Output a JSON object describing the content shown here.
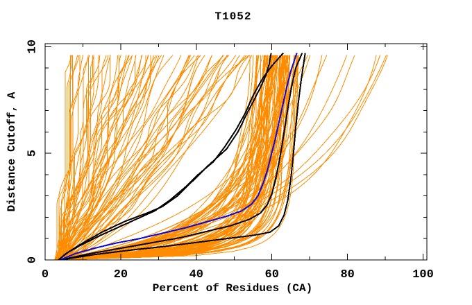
{
  "page": {
    "background": "#ffffff"
  },
  "chart_data": {
    "type": "line",
    "title": "T1052",
    "xlabel": "Percent of Residues (CA)",
    "ylabel": "Distance Cutoff, A",
    "xlim": [
      0,
      101
    ],
    "ylim": [
      0,
      10.14
    ],
    "grid": false,
    "legend": null,
    "x_axis": {
      "major": [
        {
          "v": 0,
          "label": "0"
        },
        {
          "v": 20,
          "label": "20"
        },
        {
          "v": 40,
          "label": "40"
        },
        {
          "v": 60,
          "label": "60"
        },
        {
          "v": 80,
          "label": "80"
        },
        {
          "v": 100,
          "label": "100"
        }
      ],
      "minor": [
        10,
        30,
        50,
        70,
        90
      ]
    },
    "y_axis": {
      "major": [
        {
          "v": 0,
          "label": "0"
        },
        {
          "v": 5,
          "label": "5"
        },
        {
          "v": 10,
          "label": "10"
        }
      ],
      "minor": [
        1,
        2,
        3,
        4,
        6,
        7,
        8,
        9
      ]
    },
    "colors": {
      "ensemble": "#ff8c00",
      "highlight_model": "#0a0ae0",
      "reference_models": "#000000",
      "axis": "#000000",
      "background": "#ffffff"
    },
    "highlight_series": {
      "name": "highlighted-model-blue",
      "points_percent_cutoff": [
        [
          4,
          0
        ],
        [
          8,
          0.3
        ],
        [
          13,
          0.55
        ],
        [
          19,
          0.8
        ],
        [
          25,
          1.0
        ],
        [
          31,
          1.25
        ],
        [
          37,
          1.5
        ],
        [
          43,
          1.8
        ],
        [
          48,
          2.05
        ],
        [
          52,
          2.3
        ],
        [
          54.5,
          2.6
        ],
        [
          56.3,
          3.0
        ],
        [
          57.7,
          3.6
        ],
        [
          58.8,
          4.2
        ],
        [
          59.8,
          4.9
        ],
        [
          60.8,
          5.6
        ],
        [
          61.8,
          6.4
        ],
        [
          62.8,
          7.2
        ],
        [
          63.8,
          8.0
        ],
        [
          64.9,
          8.8
        ],
        [
          66.2,
          9.5
        ],
        [
          66.6,
          9.7
        ]
      ]
    },
    "reference_series": [
      {
        "name": "reference-model-1",
        "points_percent_cutoff": [
          [
            3.5,
            0
          ],
          [
            6,
            0.35
          ],
          [
            10,
            0.8
          ],
          [
            15,
            1.3
          ],
          [
            21,
            1.8
          ],
          [
            27,
            2.2
          ],
          [
            31,
            2.5
          ],
          [
            35,
            3.0
          ],
          [
            39,
            3.7
          ],
          [
            43,
            4.4
          ],
          [
            48,
            5.2
          ],
          [
            51,
            6.0
          ],
          [
            53.5,
            6.9
          ],
          [
            55,
            7.4
          ],
          [
            57,
            8.1
          ],
          [
            58.5,
            8.7
          ],
          [
            59.3,
            9.2
          ],
          [
            59.8,
            9.7
          ]
        ]
      },
      {
        "name": "reference-model-2",
        "points_percent_cutoff": [
          [
            3.5,
            0
          ],
          [
            5.5,
            0.3
          ],
          [
            9,
            0.65
          ],
          [
            14,
            1.1
          ],
          [
            19,
            1.5
          ],
          [
            24,
            1.9
          ],
          [
            29,
            2.3
          ],
          [
            33,
            2.8
          ],
          [
            37,
            3.4
          ],
          [
            40.5,
            4.0
          ],
          [
            44.5,
            4.6
          ],
          [
            47.5,
            5.3
          ],
          [
            50.5,
            6.1
          ],
          [
            53,
            6.9
          ],
          [
            55,
            7.7
          ],
          [
            57.5,
            8.5
          ],
          [
            60,
            9.1
          ],
          [
            63,
            9.7
          ]
        ]
      },
      {
        "name": "reference-model-3",
        "points_percent_cutoff": [
          [
            4,
            0
          ],
          [
            12,
            0.3
          ],
          [
            20,
            0.55
          ],
          [
            28,
            0.8
          ],
          [
            36,
            1.05
          ],
          [
            43,
            1.35
          ],
          [
            49,
            1.6
          ],
          [
            54,
            1.9
          ],
          [
            57,
            2.2
          ],
          [
            58.8,
            2.6
          ],
          [
            60,
            3.1
          ],
          [
            61,
            3.8
          ],
          [
            61.9,
            4.6
          ],
          [
            62.7,
            5.4
          ],
          [
            63.5,
            6.3
          ],
          [
            64.3,
            7.2
          ],
          [
            65.2,
            8.1
          ],
          [
            66.3,
            9.0
          ],
          [
            68,
            9.7
          ]
        ]
      },
      {
        "name": "reference-model-4",
        "points_percent_cutoff": [
          [
            4,
            0
          ],
          [
            13,
            0.25
          ],
          [
            22,
            0.45
          ],
          [
            31,
            0.62
          ],
          [
            40,
            0.82
          ],
          [
            48,
            1.0
          ],
          [
            55,
            1.15
          ],
          [
            59.5,
            1.3
          ],
          [
            61.8,
            1.6
          ],
          [
            63.2,
            2.1
          ],
          [
            64.2,
            2.8
          ],
          [
            65,
            3.8
          ],
          [
            65.7,
            5.0
          ],
          [
            66.3,
            6.2
          ],
          [
            67,
            7.4
          ],
          [
            67.8,
            8.5
          ],
          [
            68.8,
            9.7
          ]
        ]
      }
    ],
    "ensemble": {
      "name": "server-model-ensemble",
      "approx_count": 160,
      "seed": 1052,
      "start_percent_range": [
        2.5,
        4.5
      ],
      "cutoff_max": 9.7,
      "families": [
        {
          "name": "converged-cluster",
          "type": "band",
          "count": 78,
          "top_range": [
            54,
            69
          ],
          "knee_k_range": [
            0.2,
            1.8
          ]
        },
        {
          "name": "divergent-fan",
          "type": "fan",
          "count": 68,
          "top_range": [
            4.5,
            56
          ],
          "exp_range": [
            0.6,
            1.0
          ],
          "cluster_centers": [
            8,
            15,
            23,
            31,
            39,
            47,
            53
          ]
        },
        {
          "name": "right-outliers",
          "type": "band",
          "count": 10,
          "top_range": [
            68,
            91
          ],
          "knee_k_range": [
            2,
            4.5
          ]
        },
        {
          "name": "low-knee-outliers",
          "type": "band",
          "count": 4,
          "top_range": [
            63,
            70
          ],
          "knee_k_range": [
            0.1,
            0.3
          ]
        }
      ]
    }
  }
}
